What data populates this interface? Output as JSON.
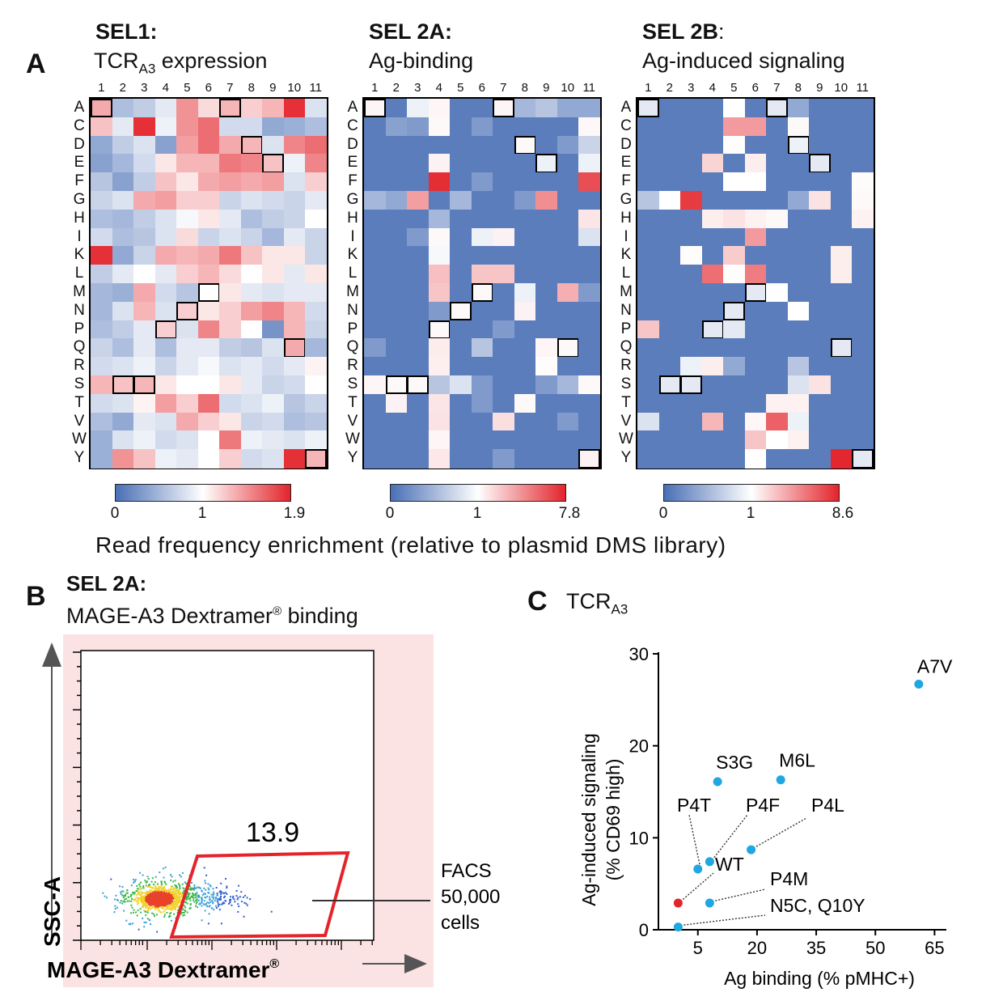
{
  "panel_a": {
    "letter": "A",
    "column_labels": [
      "1",
      "2",
      "3",
      "4",
      "5",
      "6",
      "7",
      "8",
      "9",
      "10",
      "11"
    ],
    "row_labels": [
      "A",
      "C",
      "D",
      "E",
      "F",
      "G",
      "H",
      "I",
      "K",
      "L",
      "M",
      "N",
      "P",
      "Q",
      "R",
      "S",
      "T",
      "V",
      "W",
      "Y"
    ],
    "caption": "Read frequency enrichment (relative to plasmid DMS library)",
    "colors": {
      "low": "#4a6fb5",
      "mid": "#ffffff",
      "high": "#e3242b",
      "wt_border": "#000000"
    },
    "heatmaps": [
      {
        "id": "sel1",
        "title": "SEL1:",
        "subtitle_main": "TCR",
        "subtitle_sub": "A3",
        "subtitle_rest": " expression",
        "cbar_min": "0",
        "cbar_mid": "1",
        "cbar_max": "1.9",
        "wildtype": [
          [
            0,
            0
          ],
          [
            1,
            15
          ],
          [
            2,
            15
          ],
          [
            3,
            12
          ],
          [
            4,
            11
          ],
          [
            5,
            10
          ],
          [
            6,
            0
          ],
          [
            7,
            2
          ],
          [
            8,
            3
          ],
          [
            9,
            13
          ],
          [
            10,
            19
          ]
        ],
        "values": [
          [
            1.35,
            0.55,
            0.65,
            0.85,
            1.45,
            1.15,
            1.3,
            1.2,
            1.3,
            1.85,
            0.8
          ],
          [
            1.25,
            0.85,
            1.85,
            0.9,
            1.45,
            1.6,
            0.75,
            0.75,
            0.4,
            0.45,
            0.55
          ],
          [
            0.4,
            0.65,
            0.8,
            0.35,
            1.4,
            1.6,
            1.35,
            1.3,
            0.8,
            1.5,
            1.6
          ],
          [
            0.35,
            0.5,
            0.75,
            1.1,
            1.3,
            1.3,
            1.55,
            1.5,
            1.25,
            0.9,
            1.5
          ],
          [
            0.6,
            0.35,
            0.65,
            1.25,
            1.1,
            1.35,
            1.4,
            1.35,
            1.4,
            0.8,
            1.2
          ],
          [
            0.7,
            0.8,
            1.35,
            1.4,
            1.2,
            1.2,
            0.7,
            0.8,
            0.75,
            0.7,
            0.85
          ],
          [
            0.55,
            0.5,
            0.65,
            0.8,
            0.95,
            1.1,
            0.85,
            0.55,
            0.65,
            0.7,
            1.0
          ],
          [
            0.75,
            0.55,
            0.6,
            0.8,
            1.15,
            0.7,
            0.8,
            0.7,
            0.5,
            0.85,
            0.7
          ],
          [
            1.85,
            0.4,
            0.7,
            1.35,
            1.3,
            1.35,
            1.55,
            1.25,
            1.1,
            1.1,
            0.7
          ],
          [
            0.65,
            0.85,
            1.0,
            0.85,
            1.2,
            1.3,
            1.15,
            1.0,
            1.1,
            0.85,
            1.1
          ],
          [
            0.5,
            0.45,
            1.35,
            0.75,
            0.6,
            1.0,
            1.1,
            0.85,
            0.8,
            0.85,
            0.85
          ],
          [
            0.5,
            0.8,
            1.3,
            0.8,
            1.2,
            1.1,
            1.2,
            1.4,
            1.5,
            1.3,
            0.75
          ],
          [
            0.55,
            0.65,
            0.85,
            1.2,
            0.8,
            1.5,
            1.2,
            1.0,
            0.25,
            1.3,
            0.7
          ],
          [
            0.7,
            0.55,
            0.85,
            0.55,
            0.85,
            0.85,
            0.65,
            0.6,
            0.8,
            1.35,
            0.5
          ],
          [
            0.75,
            0.8,
            0.9,
            0.7,
            0.85,
            0.95,
            0.8,
            0.85,
            0.75,
            0.85,
            1.05
          ],
          [
            1.3,
            1.25,
            1.3,
            1.1,
            1.0,
            1.0,
            1.1,
            0.85,
            0.7,
            0.75,
            1.0
          ],
          [
            0.75,
            0.8,
            1.05,
            1.4,
            1.2,
            1.6,
            0.75,
            0.8,
            0.9,
            0.6,
            0.7
          ],
          [
            0.55,
            0.4,
            0.85,
            0.8,
            1.35,
            1.2,
            1.1,
            0.7,
            0.75,
            0.55,
            0.6
          ],
          [
            0.45,
            0.8,
            0.9,
            0.75,
            0.8,
            1.0,
            1.55,
            0.9,
            0.85,
            0.8,
            0.9
          ],
          [
            0.45,
            1.45,
            1.25,
            0.9,
            0.85,
            1.0,
            1.2,
            0.75,
            0.8,
            1.85,
            1.3
          ]
        ]
      },
      {
        "id": "sel2a",
        "title": "SEL 2A:",
        "subtitle_main": "Ag-binding",
        "subtitle_sub": "",
        "subtitle_rest": "",
        "cbar_min": "0",
        "cbar_mid": "1",
        "cbar_max": "7.8",
        "wildtype": [
          [
            0,
            0
          ],
          [
            1,
            15
          ],
          [
            2,
            15
          ],
          [
            3,
            12
          ],
          [
            4,
            11
          ],
          [
            5,
            10
          ],
          [
            6,
            0
          ],
          [
            7,
            2
          ],
          [
            8,
            3
          ],
          [
            9,
            13
          ],
          [
            10,
            19
          ]
        ],
        "values": [
          [
            1.3,
            0.1,
            0.9,
            1.3,
            0.1,
            0.1,
            1.3,
            0.5,
            0.6,
            0.4,
            0.4
          ],
          [
            0.1,
            0.35,
            0.3,
            1.2,
            0.1,
            0.3,
            0.1,
            0.1,
            0.1,
            0.1,
            1.25
          ],
          [
            0.1,
            0.1,
            0.1,
            0.1,
            0.1,
            0.1,
            0.1,
            1.2,
            0.1,
            0.3,
            0.7
          ],
          [
            0.1,
            0.1,
            0.1,
            1.4,
            0.1,
            0.1,
            0.1,
            0.1,
            0.9,
            0.1,
            0.9
          ],
          [
            0.1,
            0.1,
            0.1,
            7.5,
            0.1,
            0.3,
            0.1,
            0.1,
            0.1,
            0.1,
            6.5
          ],
          [
            0.5,
            0.4,
            4.0,
            0.1,
            0.5,
            0.1,
            0.1,
            0.3,
            4.5,
            0.1,
            0.1
          ],
          [
            0.1,
            0.1,
            0.1,
            0.5,
            0.1,
            0.1,
            0.1,
            0.1,
            0.1,
            0.1,
            1.8
          ],
          [
            0.1,
            0.1,
            0.3,
            1.2,
            0.1,
            0.9,
            1.4,
            0.1,
            0.1,
            0.1,
            0.8
          ],
          [
            0.1,
            0.1,
            0.1,
            0.95,
            0.1,
            0.1,
            0.1,
            0.1,
            0.1,
            0.1,
            0.1
          ],
          [
            0.1,
            0.1,
            0.1,
            3.0,
            0.1,
            2.8,
            2.8,
            0.1,
            0.1,
            0.1,
            0.1
          ],
          [
            0.1,
            0.1,
            0.1,
            2.8,
            0.1,
            1.2,
            0.1,
            0.9,
            0.1,
            3.5,
            0.3
          ],
          [
            0.1,
            0.1,
            0.1,
            0.3,
            1.2,
            0.1,
            0.1,
            1.4,
            0.1,
            0.1,
            0.1
          ],
          [
            0.1,
            0.1,
            0.1,
            1.2,
            0.1,
            0.1,
            0.3,
            0.1,
            0.1,
            0.1,
            0.1
          ],
          [
            0.3,
            0.1,
            0.1,
            1.6,
            0.1,
            0.6,
            0.1,
            0.1,
            1.3,
            1.2,
            0.1
          ],
          [
            0.1,
            0.1,
            0.1,
            1.5,
            0.1,
            0.1,
            0.1,
            0.1,
            1.1,
            0.1,
            0.1
          ],
          [
            1.3,
            1.2,
            1.2,
            0.6,
            0.8,
            0.3,
            0.1,
            0.1,
            0.3,
            0.5,
            1.2
          ],
          [
            0.1,
            1.4,
            0.1,
            1.8,
            0.1,
            0.3,
            0.1,
            1.2,
            0.1,
            0.1,
            0.1
          ],
          [
            0.1,
            0.1,
            0.1,
            1.9,
            0.1,
            0.1,
            2.0,
            0.1,
            0.1,
            0.3,
            0.1
          ],
          [
            0.1,
            0.1,
            0.1,
            1.3,
            0.1,
            0.1,
            0.1,
            0.1,
            0.1,
            0.1,
            0.1
          ],
          [
            0.1,
            0.1,
            0.1,
            1.7,
            0.1,
            0.1,
            0.3,
            0.1,
            0.1,
            0.1,
            1.4
          ]
        ]
      },
      {
        "id": "sel2b",
        "title": "SEL 2B",
        "title_rest": ":",
        "subtitle_main": "Ag-induced signaling",
        "subtitle_sub": "",
        "subtitle_rest": "",
        "cbar_min": "0",
        "cbar_mid": "1",
        "cbar_max": "8.6",
        "wildtype": [
          [
            0,
            0
          ],
          [
            1,
            15
          ],
          [
            2,
            15
          ],
          [
            3,
            12
          ],
          [
            4,
            11
          ],
          [
            5,
            10
          ],
          [
            6,
            0
          ],
          [
            7,
            2
          ],
          [
            8,
            3
          ],
          [
            9,
            13
          ],
          [
            10,
            19
          ]
        ],
        "values": [
          [
            0.85,
            0.1,
            0.1,
            0.1,
            1.0,
            0.1,
            0.85,
            0.4,
            0.1,
            0.1,
            0.1
          ],
          [
            0.1,
            0.1,
            0.1,
            0.1,
            4.5,
            4.5,
            0.1,
            1.2,
            0.1,
            0.1,
            0.1
          ],
          [
            0.1,
            0.1,
            0.1,
            0.1,
            1.1,
            0.1,
            0.1,
            0.9,
            0.1,
            0.1,
            0.1
          ],
          [
            0.1,
            0.1,
            0.1,
            2.5,
            0.1,
            1.6,
            0.1,
            0.1,
            0.85,
            0.1,
            0.1
          ],
          [
            0.1,
            0.1,
            0.1,
            0.1,
            1.0,
            1.0,
            0.1,
            0.1,
            0.1,
            0.1,
            1.15
          ],
          [
            0.6,
            1.0,
            7.8,
            0.1,
            0.1,
            0.1,
            0.1,
            0.4,
            2.0,
            0.1,
            1.2
          ],
          [
            0.1,
            0.1,
            0.1,
            1.6,
            2.0,
            1.5,
            1.2,
            0.1,
            0.1,
            0.1,
            1.5
          ],
          [
            0.1,
            0.1,
            0.1,
            0.1,
            0.1,
            4.5,
            0.1,
            0.1,
            0.1,
            0.1,
            0.1
          ],
          [
            0.1,
            0.1,
            1.1,
            0.1,
            2.8,
            0.1,
            0.1,
            0.1,
            0.1,
            1.6,
            0.1
          ],
          [
            0.1,
            0.1,
            0.1,
            6.0,
            1.1,
            5.5,
            0.1,
            0.1,
            0.1,
            1.6,
            0.1
          ],
          [
            0.1,
            0.1,
            0.1,
            0.1,
            0.1,
            0.85,
            1.0,
            0.1,
            0.1,
            0.1,
            0.1
          ],
          [
            0.1,
            0.1,
            0.1,
            0.1,
            0.85,
            0.1,
            0.1,
            1.0,
            0.1,
            0.1,
            0.1
          ],
          [
            3.0,
            0.1,
            0.1,
            0.85,
            0.85,
            0.1,
            0.1,
            0.1,
            0.1,
            0.1,
            0.1
          ],
          [
            0.1,
            0.1,
            0.1,
            0.1,
            0.1,
            0.1,
            0.1,
            0.1,
            0.1,
            0.85,
            0.1
          ],
          [
            0.1,
            0.1,
            0.9,
            1.6,
            0.4,
            0.1,
            0.1,
            0.6,
            0.1,
            0.1,
            0.1
          ],
          [
            0.1,
            0.85,
            0.85,
            0.1,
            0.1,
            0.1,
            0.1,
            0.8,
            2.0,
            0.1,
            0.1
          ],
          [
            0.1,
            0.1,
            0.1,
            0.1,
            0.1,
            0.1,
            1.5,
            1.5,
            0.1,
            0.1,
            0.1
          ],
          [
            0.8,
            0.1,
            0.1,
            3.5,
            0.1,
            1.3,
            6.5,
            0.9,
            0.1,
            0.1,
            0.1
          ],
          [
            0.1,
            0.1,
            0.1,
            0.1,
            0.1,
            3.0,
            1.0,
            1.5,
            0.1,
            0.1,
            0.1
          ],
          [
            0.1,
            0.1,
            0.1,
            0.1,
            0.1,
            1.0,
            0.1,
            0.1,
            0.1,
            8.5,
            0.85
          ]
        ]
      }
    ]
  },
  "panel_b": {
    "letter": "B",
    "title": "SEL 2A:",
    "subtitle": "MAGE-A3 Dextramer",
    "subtitle_reg": "®",
    "subtitle_rest": " binding",
    "gate_value": "13.9",
    "annotation_line1": "FACS",
    "annotation_line2": "50,000",
    "annotation_line3": "cells",
    "y_axis_label": "SSC-A",
    "x_axis_label": "MAGE-A3 Dextramer",
    "x_axis_reg": "®",
    "gate_color": "#e3242b",
    "background_color": "#fbe3e3"
  },
  "panel_c": {
    "letter": "C",
    "title_main": "TCR",
    "title_sub": "A3",
    "chart_data": {
      "type": "scatter",
      "title": "TCRA3",
      "xlabel": "Ag binding (% pMHC+)",
      "ylabel_line1": "Ag-induced signaling",
      "ylabel_line2": "(% CD69 high)",
      "xlim": [
        -5,
        68
      ],
      "ylim": [
        0,
        30
      ],
      "x_ticks": [
        5,
        20,
        35,
        50,
        65
      ],
      "y_ticks": [
        0,
        10,
        20,
        30
      ],
      "point_color": "#1ea7e0",
      "wt_color": "#e3242b",
      "points": [
        {
          "label": "A7V",
          "x": 61,
          "y": 26.7
        },
        {
          "label": "S3G",
          "x": 10,
          "y": 16.1
        },
        {
          "label": "M6L",
          "x": 26,
          "y": 16.3
        },
        {
          "label": "P4T",
          "x": 5,
          "y": 6.6
        },
        {
          "label": "P4F",
          "x": 8,
          "y": 7.4
        },
        {
          "label": "P4L",
          "x": 18.5,
          "y": 8.7
        },
        {
          "label": "WT",
          "x": 0,
          "y": 2.9
        },
        {
          "label": "P4M",
          "x": 8,
          "y": 2.9
        },
        {
          "label": "N5C, Q10Y",
          "x": 0,
          "y": 0.3
        }
      ]
    }
  }
}
